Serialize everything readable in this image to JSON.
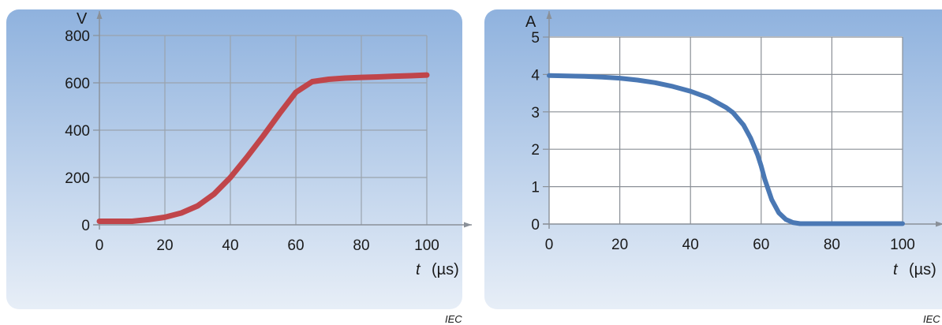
{
  "iec_mark": "IEC",
  "chart_data": [
    {
      "type": "line",
      "id": "voltage",
      "y_unit": "V",
      "x_label_var": "t",
      "x_label_unit": "(µs)",
      "xlim": [
        0,
        100
      ],
      "ylim": [
        0,
        800
      ],
      "x_ticks": [
        "0",
        "20",
        "40",
        "60",
        "80",
        "100"
      ],
      "y_ticks": [
        "0",
        "200",
        "400",
        "600",
        "800"
      ],
      "x_tick_values": [
        0,
        20,
        40,
        60,
        80,
        100
      ],
      "y_tick_values": [
        0,
        200,
        400,
        600,
        800
      ],
      "grid": true,
      "colors": {
        "line": "#c0454a",
        "panel_top": "#8fb2de",
        "panel_bottom": "#e7eef7",
        "grid": "#9aa3ad"
      },
      "series": [
        {
          "x": [
            0,
            5,
            10,
            15,
            20,
            25,
            30,
            35,
            40,
            45,
            50,
            55,
            60,
            65,
            70,
            75,
            80,
            85,
            90,
            95,
            100
          ],
          "y": [
            15,
            15,
            15,
            22,
            32,
            50,
            80,
            130,
            200,
            285,
            375,
            470,
            560,
            605,
            615,
            620,
            623,
            625,
            628,
            630,
            633
          ]
        }
      ]
    },
    {
      "type": "line",
      "id": "current",
      "y_unit": "A",
      "x_label_var": "t",
      "x_label_unit": "(µs)",
      "xlim": [
        0,
        100
      ],
      "ylim": [
        0,
        5
      ],
      "x_ticks": [
        "0",
        "20",
        "40",
        "60",
        "80",
        "100"
      ],
      "y_ticks": [
        "0",
        "1",
        "2",
        "3",
        "4",
        "5"
      ],
      "x_tick_values": [
        0,
        20,
        40,
        60,
        80,
        100
      ],
      "y_tick_values": [
        0,
        1,
        2,
        3,
        4,
        5
      ],
      "grid": true,
      "colors": {
        "line": "#4a78b4",
        "panel_top": "#8fb2de",
        "panel_bottom": "#e7eef7",
        "grid": "#8a8f96",
        "plot_bg": "#ffffff"
      },
      "series": [
        {
          "x": [
            0,
            5,
            10,
            15,
            20,
            25,
            30,
            35,
            40,
            45,
            50,
            52,
            55,
            57,
            59,
            60,
            61,
            63,
            65,
            67,
            69,
            71,
            75,
            80,
            85,
            90,
            95,
            100
          ],
          "y": [
            3.97,
            3.96,
            3.95,
            3.93,
            3.9,
            3.85,
            3.78,
            3.68,
            3.55,
            3.38,
            3.12,
            2.98,
            2.65,
            2.3,
            1.85,
            1.55,
            1.2,
            0.65,
            0.3,
            0.12,
            0.04,
            0.01,
            0.01,
            0.01,
            0.01,
            0.01,
            0.01,
            0.01
          ]
        }
      ]
    }
  ]
}
